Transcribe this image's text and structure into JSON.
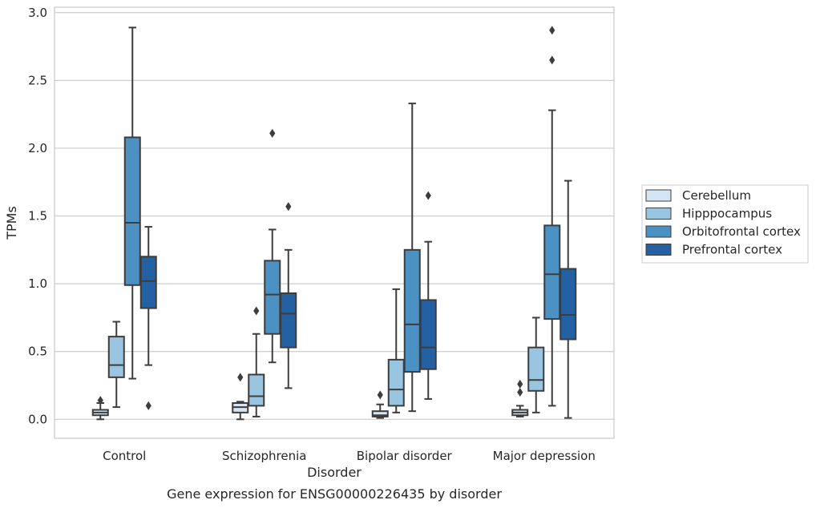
{
  "chart_data": {
    "type": "boxplot",
    "title": "",
    "caption": "Gene expression for ENSG00000226435 by disorder",
    "xlabel": "Disorder",
    "ylabel": "TPMs",
    "ylim": [
      -0.14,
      3.04
    ],
    "yticks": [
      "0.0",
      "0.5",
      "1.0",
      "1.5",
      "2.0",
      "2.5",
      "3.0"
    ],
    "grid": "horizontal",
    "legend_placement": "right",
    "categories": [
      "Control",
      "Schizophrenia",
      "Bipolar disorder",
      "Major depression"
    ],
    "series": [
      {
        "name": "Cerebellum",
        "color": "#d6e5f3",
        "boxes": [
          {
            "whislo": 0.0,
            "q1": 0.03,
            "med": 0.05,
            "q3": 0.07,
            "whishi": 0.12,
            "fliers": [
              0.14
            ]
          },
          {
            "whislo": 0.0,
            "q1": 0.05,
            "med": 0.09,
            "q3": 0.12,
            "whishi": 0.13,
            "fliers": [
              0.31
            ]
          },
          {
            "whislo": 0.01,
            "q1": 0.02,
            "med": 0.03,
            "q3": 0.06,
            "whishi": 0.11,
            "fliers": [
              0.18
            ]
          },
          {
            "whislo": 0.02,
            "q1": 0.03,
            "med": 0.05,
            "q3": 0.07,
            "whishi": 0.1,
            "fliers": [
              0.2,
              0.26
            ]
          }
        ]
      },
      {
        "name": "Hipppocampus",
        "color": "#9ac5e0",
        "boxes": [
          {
            "whislo": 0.09,
            "q1": 0.31,
            "med": 0.4,
            "q3": 0.61,
            "whishi": 0.72,
            "fliers": []
          },
          {
            "whislo": 0.02,
            "q1": 0.1,
            "med": 0.17,
            "q3": 0.33,
            "whishi": 0.63,
            "fliers": [
              0.8
            ]
          },
          {
            "whislo": 0.05,
            "q1": 0.1,
            "med": 0.22,
            "q3": 0.44,
            "whishi": 0.96,
            "fliers": []
          },
          {
            "whislo": 0.05,
            "q1": 0.21,
            "med": 0.29,
            "q3": 0.53,
            "whishi": 0.75,
            "fliers": []
          }
        ]
      },
      {
        "name": "Orbitofrontal cortex",
        "color": "#4b91c3",
        "boxes": [
          {
            "whislo": 0.3,
            "q1": 0.99,
            "med": 1.45,
            "q3": 2.08,
            "whishi": 2.89,
            "fliers": []
          },
          {
            "whislo": 0.42,
            "q1": 0.63,
            "med": 0.92,
            "q3": 1.17,
            "whishi": 1.4,
            "fliers": [
              2.11
            ]
          },
          {
            "whislo": 0.06,
            "q1": 0.35,
            "med": 0.7,
            "q3": 1.25,
            "whishi": 2.33,
            "fliers": []
          },
          {
            "whislo": 0.1,
            "q1": 0.74,
            "med": 1.07,
            "q3": 1.43,
            "whishi": 2.28,
            "fliers": [
              2.65,
              2.87
            ]
          }
        ]
      },
      {
        "name": "Prefrontal cortex",
        "color": "#2461a3",
        "boxes": [
          {
            "whislo": 0.4,
            "q1": 0.82,
            "med": 1.02,
            "q3": 1.2,
            "whishi": 1.42,
            "fliers": [
              0.1
            ]
          },
          {
            "whislo": 0.23,
            "q1": 0.53,
            "med": 0.78,
            "q3": 0.93,
            "whishi": 1.25,
            "fliers": [
              1.57
            ]
          },
          {
            "whislo": 0.15,
            "q1": 0.37,
            "med": 0.53,
            "q3": 0.88,
            "whishi": 1.31,
            "fliers": [
              1.65
            ]
          },
          {
            "whislo": 0.01,
            "q1": 0.59,
            "med": 0.77,
            "q3": 1.11,
            "whishi": 1.76,
            "fliers": []
          }
        ]
      }
    ]
  }
}
